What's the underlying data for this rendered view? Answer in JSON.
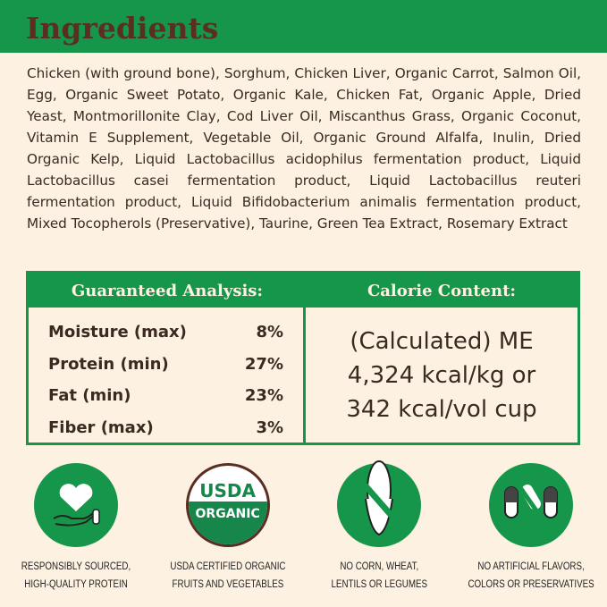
{
  "header": {
    "title": "Ingredients"
  },
  "ingredients": "Chicken (with ground bone), Sorghum, Chicken Liver, Organic Carrot, Salmon Oil, Egg, Organic Sweet Potato, Organic Kale, Chicken Fat, Organic Apple, Dried Yeast, Montmorillonite Clay, Cod Liver Oil, Miscanthus Grass, Organic Coconut, Vitamin E Supplement, Vegetable Oil, Organic Ground Alfalfa, Inulin, Dried Organic Kelp, Liquid Lactobacillus acidophilus fermentation product, Liquid Lactobacillus casei fermentation product, Liquid Lactobacillus reuteri fermentation product, Liquid Bifidobacterium animalis fermentation product, Mixed Tocopherols (Preservative), Taurine, Green Tea Extract, Rosemary Extract",
  "analysis": {
    "title": "Guaranteed Analysis:",
    "rows": [
      {
        "label": "Moisture (max)",
        "value": "8%"
      },
      {
        "label": "Protein (min)",
        "value": "27%"
      },
      {
        "label": "Fat (min)",
        "value": "23%"
      },
      {
        "label": "Fiber (max)",
        "value": "3%"
      }
    ]
  },
  "calorie": {
    "title": "Calorie Content:",
    "lines": [
      "(Calculated) ME",
      "4,324 kcal/kg or",
      "342 kcal/vol cup"
    ]
  },
  "badges": [
    {
      "icon": "heart-hand-icon",
      "line1": "RESPONSIBLY SOURCED,",
      "line2": "HIGH-QUALITY PROTEIN"
    },
    {
      "icon": "usda-organic-seal",
      "seal_top": "USDA",
      "seal_bottom": "ORGANIC",
      "line1": "USDA CERTIFIED ORGANIC",
      "line2": "FRUITS AND VEGETABLES"
    },
    {
      "icon": "no-corn-icon",
      "line1": "NO CORN, WHEAT,",
      "line2": "LENTILS OR LEGUMES"
    },
    {
      "icon": "no-capsules-icon",
      "line1": "NO ARTIFICIAL FLAVORS,",
      "line2": "COLORS OR PRESERVATIVES"
    }
  ],
  "colors": {
    "green": "#16964a",
    "brown": "#5a2e22",
    "background": "#fdf2e2"
  }
}
